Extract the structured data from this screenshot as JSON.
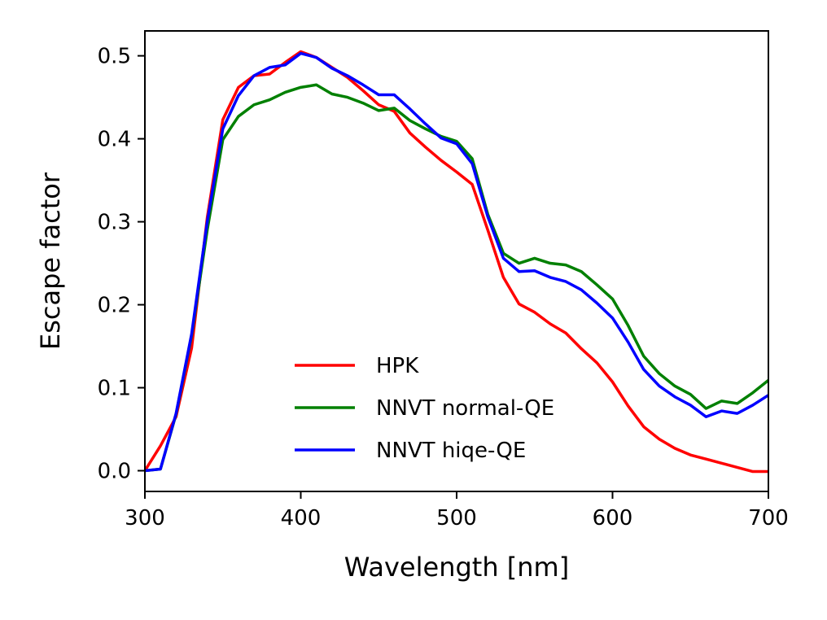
{
  "chart_data": {
    "type": "line",
    "title": "",
    "xlabel": "Wavelength [nm]",
    "ylabel": "Escape factor",
    "xlim": [
      300,
      700
    ],
    "ylim": [
      -0.025,
      0.53
    ],
    "xticks": [
      300,
      400,
      500,
      600,
      700
    ],
    "xtick_labels": [
      "300",
      "400",
      "500",
      "600",
      "700"
    ],
    "yticks": [
      0.0,
      0.1,
      0.2,
      0.3,
      0.4,
      0.5
    ],
    "ytick_labels": [
      "0.0",
      "0.1",
      "0.2",
      "0.3",
      "0.4",
      "0.5"
    ],
    "grid": false,
    "legend_position": "lower-center",
    "x": [
      300,
      310,
      320,
      330,
      340,
      350,
      360,
      370,
      380,
      390,
      400,
      410,
      420,
      430,
      440,
      450,
      460,
      470,
      480,
      490,
      500,
      510,
      520,
      530,
      540,
      550,
      560,
      570,
      580,
      590,
      600,
      610,
      620,
      630,
      640,
      650,
      660,
      670,
      680,
      690,
      700
    ],
    "series": [
      {
        "name": "HPK",
        "color": "#ff0000",
        "values": [
          0.0,
          0.03,
          0.065,
          0.148,
          0.305,
          0.423,
          0.462,
          0.476,
          0.478,
          0.492,
          0.505,
          0.498,
          0.486,
          0.474,
          0.458,
          0.441,
          0.433,
          0.407,
          0.39,
          0.374,
          0.36,
          0.345,
          0.29,
          0.233,
          0.201,
          0.191,
          0.177,
          0.166,
          0.147,
          0.13,
          0.107,
          0.078,
          0.053,
          0.038,
          0.027,
          0.019,
          0.014,
          0.009,
          0.004,
          -0.001,
          -0.001
        ]
      },
      {
        "name": "NNVT normal-QE",
        "color": "#008000",
        "values": [
          0.0,
          0.002,
          0.068,
          0.163,
          0.29,
          0.399,
          0.427,
          0.441,
          0.447,
          0.456,
          0.462,
          0.465,
          0.454,
          0.45,
          0.443,
          0.434,
          0.437,
          0.422,
          0.412,
          0.403,
          0.397,
          0.376,
          0.309,
          0.262,
          0.25,
          0.256,
          0.25,
          0.248,
          0.24,
          0.224,
          0.207,
          0.175,
          0.138,
          0.117,
          0.102,
          0.092,
          0.075,
          0.084,
          0.081,
          0.094,
          0.109
        ]
      },
      {
        "name": "NNVT hiqe-QE",
        "color": "#0000ff",
        "values": [
          0.0,
          0.002,
          0.069,
          0.165,
          0.3,
          0.412,
          0.452,
          0.476,
          0.486,
          0.489,
          0.503,
          0.498,
          0.485,
          0.476,
          0.465,
          0.453,
          0.453,
          0.436,
          0.418,
          0.401,
          0.394,
          0.37,
          0.306,
          0.256,
          0.24,
          0.241,
          0.233,
          0.228,
          0.218,
          0.202,
          0.184,
          0.155,
          0.122,
          0.102,
          0.089,
          0.079,
          0.065,
          0.072,
          0.069,
          0.079,
          0.091
        ]
      }
    ]
  }
}
